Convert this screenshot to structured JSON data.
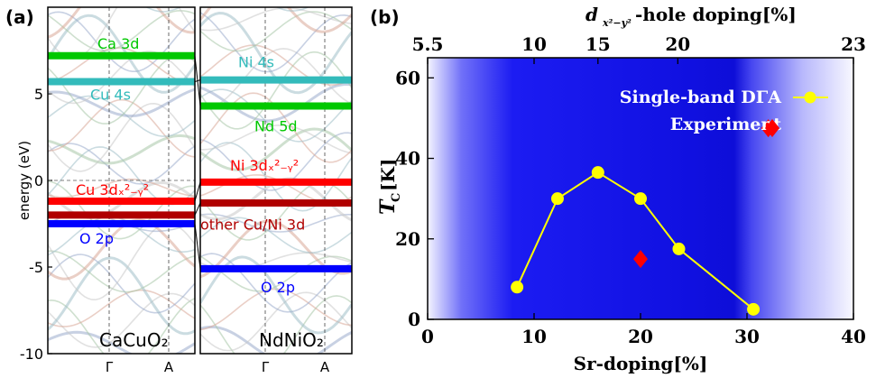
{
  "chart_data": [
    {
      "panel_label": "(a)",
      "type": "line",
      "ylabel": "energy (eV)",
      "ylim": [
        -10,
        10
      ],
      "yticks": [
        "-10",
        "-5",
        "0",
        "5"
      ],
      "subpanels": [
        {
          "compound": "CaCuO₂",
          "kpoints": [
            "Γ",
            "A"
          ],
          "levels": [
            {
              "label": "Ca 3d",
              "energy": 7.2,
              "color": "#00c800"
            },
            {
              "label": "Cu 4s",
              "energy": 5.7,
              "color": "#33bbbb"
            },
            {
              "label": "Cu 3dₓ²₋ᵧ²",
              "energy": -1.2,
              "color": "#ff0000"
            },
            {
              "label": "other Cu/Ni 3d",
              "energy": -2.0,
              "color": "#b00000"
            },
            {
              "label": "O 2p",
              "energy": -2.5,
              "color": "#0000ff"
            }
          ]
        },
        {
          "compound": "NdNiO₂",
          "kpoints": [
            "Γ",
            "A"
          ],
          "levels": [
            {
              "label": "Ni 4s",
              "energy": 5.8,
              "color": "#33bbbb"
            },
            {
              "label": "Nd 5d",
              "energy": 4.3,
              "color": "#00c800"
            },
            {
              "label": "Ni 3dₓ²₋ᵧ²",
              "energy": -0.1,
              "color": "#ff0000"
            },
            {
              "label": "other Cu/Ni 3d",
              "energy": -1.3,
              "color": "#b00000"
            },
            {
              "label": "O 2p",
              "energy": -5.1,
              "color": "#0000ff"
            }
          ]
        }
      ]
    },
    {
      "panel_label": "(b)",
      "type": "scatter",
      "xlabel": "Sr-doping[%]",
      "ylabel": "T_C[K]",
      "top_xlabel": "d_{x²−y²}-hole doping[%]",
      "xlim": [
        0,
        40
      ],
      "ylim": [
        0,
        65
      ],
      "xticks": [
        0,
        10,
        20,
        30,
        40
      ],
      "yticks": [
        0,
        20,
        40,
        60
      ],
      "top_ticks": [
        {
          "label": "5.5",
          "x": 0
        },
        {
          "label": "10",
          "x": 10
        },
        {
          "label": "15",
          "x": 16
        },
        {
          "label": "20",
          "x": 23.5
        },
        {
          "label": "23",
          "x": 40
        }
      ],
      "series": [
        {
          "name": "Single-band DΓA",
          "type": "line",
          "color": "#ffff00",
          "x": [
            8.4,
            12.2,
            16.0,
            20.0,
            23.6,
            30.6
          ],
          "y": [
            8.0,
            30.0,
            36.5,
            30.0,
            17.5,
            2.5
          ]
        },
        {
          "name": "Experiment",
          "type": "scatter",
          "marker": "diamond",
          "color": "#ff0000",
          "x": [
            20.0,
            32.0
          ],
          "y": [
            15.0,
            47.5
          ]
        }
      ],
      "legend_position": "top-right",
      "background": "blue gradient"
    }
  ]
}
